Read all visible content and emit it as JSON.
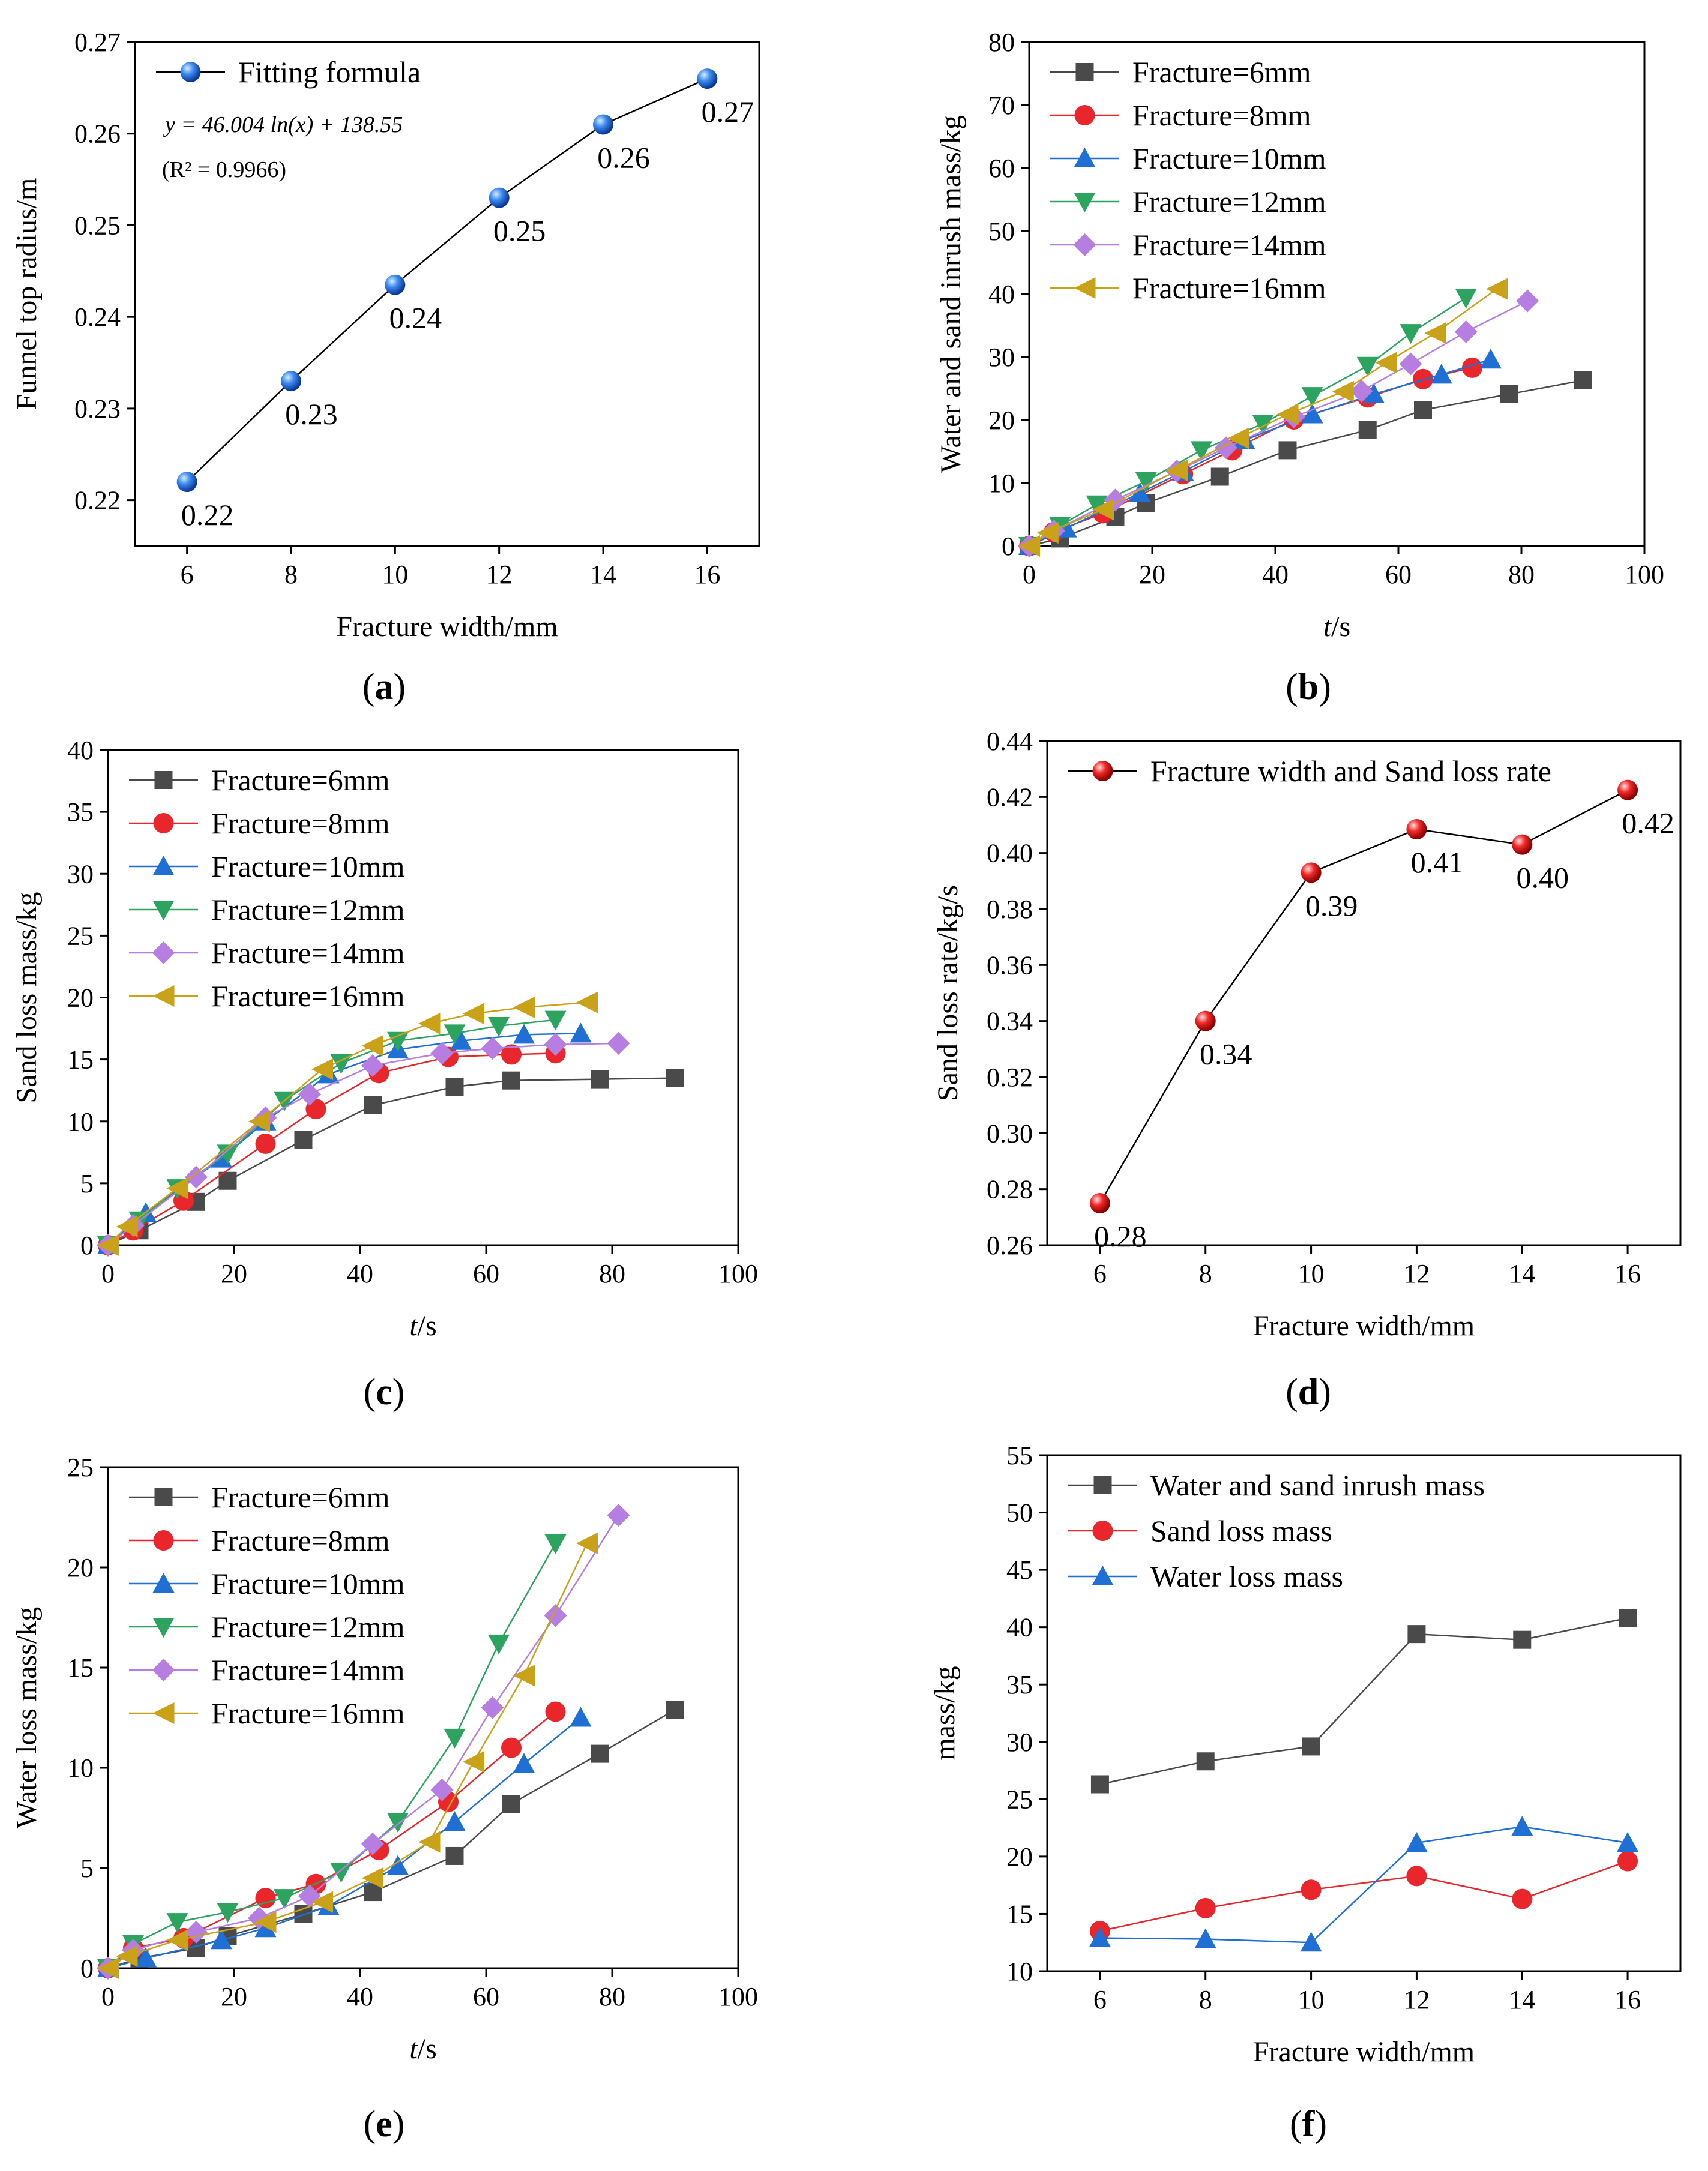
{
  "panel_labels": [
    "a",
    "b",
    "c",
    "d",
    "e",
    "f"
  ],
  "chart_data": [
    {
      "id": "a",
      "type": "line",
      "xlabel": "Fracture width/mm",
      "ylabel": "Funnel top radius/m",
      "xlim": [
        5,
        17
      ],
      "ylim": [
        0.215,
        0.27
      ],
      "xticks": [
        6,
        8,
        10,
        12,
        14,
        16
      ],
      "yticks": [
        0.22,
        0.23,
        0.24,
        0.25,
        0.26,
        0.27
      ],
      "ytick_decimals": 2,
      "legend": "top-left",
      "formula": "y = 46.004 ln(x) + 138.55",
      "r2": "(R² = 0.9966)",
      "series": [
        {
          "name": "Fitting formula",
          "color": "#2a6fd6",
          "marker": "ball",
          "x": [
            6,
            8,
            10,
            12,
            14,
            16
          ],
          "values": [
            0.222,
            0.233,
            0.2435,
            0.253,
            0.261,
            0.266
          ],
          "labels": [
            "0.22",
            "0.23",
            "0.24",
            "0.25",
            "0.26",
            "0.27"
          ]
        }
      ]
    },
    {
      "id": "b",
      "type": "line",
      "xlabel_italic": "t",
      "xlabel_rest": "/s",
      "ylabel": "Water and sand inrush mass/kg",
      "xlim": [
        0,
        100
      ],
      "ylim": [
        0,
        80
      ],
      "xticks": [
        0,
        20,
        40,
        60,
        80,
        100
      ],
      "yticks": [
        0,
        10,
        20,
        30,
        40,
        50,
        60,
        70,
        80
      ],
      "ytick_decimals": 0,
      "legend": "top-left",
      "series": [
        {
          "name": "Fracture=6mm",
          "color": "#4a4a4a",
          "marker": "square",
          "x": [
            0,
            5,
            14,
            19,
            31,
            42,
            55,
            64,
            78,
            90
          ],
          "values": [
            0,
            1.2,
            4.6,
            6.8,
            11,
            15.2,
            18.4,
            21.6,
            24.1,
            26.3
          ]
        },
        {
          "name": "Fracture=8mm",
          "color": "#e8262b",
          "marker": "circle",
          "x": [
            0,
            4,
            12,
            25,
            33,
            43,
            55,
            64,
            72
          ],
          "values": [
            0,
            2.2,
            5.2,
            11.4,
            15.2,
            20.1,
            23.6,
            26.5,
            28.3
          ]
        },
        {
          "name": "Fracture=10mm",
          "color": "#1f6fd4",
          "marker": "triangle",
          "x": [
            0,
            6,
            18,
            25,
            35,
            46,
            56,
            67,
            75
          ],
          "values": [
            0,
            2.8,
            8.4,
            11.8,
            16.8,
            20.9,
            24.1,
            27.2,
            29.6
          ]
        },
        {
          "name": "Fracture=12mm",
          "color": "#2ca35f",
          "marker": "tridown",
          "x": [
            0,
            5,
            11,
            19,
            28,
            38,
            46,
            55,
            62,
            71
          ],
          "values": [
            0,
            3.2,
            6.6,
            10.3,
            15.2,
            19.4,
            23.8,
            28.6,
            33.8,
            39.4
          ]
        },
        {
          "name": "Fracture=14mm",
          "color": "#b57ee0",
          "marker": "diamond",
          "x": [
            0,
            4,
            14,
            24,
            32,
            43,
            54,
            62,
            71,
            81
          ],
          "values": [
            0,
            2.4,
            7.3,
            11.9,
            15.6,
            20.5,
            24.6,
            28.9,
            34,
            38.9
          ]
        },
        {
          "name": "Fracture=16mm",
          "color": "#c9a21a",
          "marker": "triangleleft",
          "x": [
            0,
            3,
            12,
            24,
            34,
            42,
            51,
            58,
            66,
            76
          ],
          "values": [
            0,
            2.1,
            5.8,
            12,
            17.1,
            20.9,
            24.5,
            29.1,
            33.8,
            40.8
          ]
        }
      ]
    },
    {
      "id": "c",
      "type": "line",
      "xlabel_italic": "t",
      "xlabel_rest": "/s",
      "ylabel": "Sand loss mass/kg",
      "xlim": [
        0,
        100
      ],
      "ylim": [
        0,
        40
      ],
      "xticks": [
        0,
        20,
        40,
        60,
        80,
        100
      ],
      "yticks": [
        0,
        5,
        10,
        15,
        20,
        25,
        30,
        35,
        40
      ],
      "ytick_decimals": 0,
      "legend": "top-left",
      "series": [
        {
          "name": "Fracture=6mm",
          "color": "#4a4a4a",
          "marker": "square",
          "x": [
            0,
            5,
            14,
            19,
            31,
            42,
            55,
            64,
            78,
            90
          ],
          "values": [
            0,
            1.2,
            3.5,
            5.2,
            8.5,
            11.3,
            12.8,
            13.3,
            13.4,
            13.5
          ]
        },
        {
          "name": "Fracture=8mm",
          "color": "#e8262b",
          "marker": "circle",
          "x": [
            0,
            4,
            12,
            25,
            33,
            43,
            54,
            64,
            71
          ],
          "values": [
            0,
            1.2,
            3.6,
            8.2,
            11,
            13.9,
            15.2,
            15.4,
            15.5
          ]
        },
        {
          "name": "Fracture=10mm",
          "color": "#1f6fd4",
          "marker": "triangle",
          "x": [
            0,
            6,
            18,
            25,
            35,
            46,
            56,
            66,
            75
          ],
          "values": [
            0,
            2.6,
            7,
            10,
            13.8,
            15.8,
            16.5,
            17,
            17.1
          ]
        },
        {
          "name": "Fracture=12mm",
          "color": "#2ca35f",
          "marker": "tridown",
          "x": [
            0,
            5,
            11,
            19,
            28,
            37,
            46,
            55,
            62,
            71
          ],
          "values": [
            0,
            2,
            4.6,
            7.4,
            11.7,
            14.7,
            16.5,
            17.1,
            17.7,
            18.2
          ]
        },
        {
          "name": "Fracture=14mm",
          "color": "#b57ee0",
          "marker": "diamond",
          "x": [
            0,
            4,
            14,
            25,
            32,
            42,
            53,
            61,
            71,
            81
          ],
          "values": [
            0,
            1.6,
            5.5,
            10.3,
            12.2,
            14.5,
            15.5,
            15.9,
            16.2,
            16.3
          ]
        },
        {
          "name": "Fracture=16mm",
          "color": "#c9a21a",
          "marker": "triangleleft",
          "x": [
            0,
            3,
            11,
            24,
            34,
            42,
            51,
            58,
            66,
            76
          ],
          "values": [
            0,
            1.5,
            4.6,
            10,
            14.2,
            16.1,
            17.9,
            18.7,
            19.2,
            19.6
          ]
        }
      ]
    },
    {
      "id": "d",
      "type": "line",
      "xlabel": "Fracture width/mm",
      "ylabel": "Sand loss rate/kg/s",
      "xlim": [
        5,
        17
      ],
      "ylim": [
        0.26,
        0.44
      ],
      "xticks": [
        6,
        8,
        10,
        12,
        14,
        16
      ],
      "yticks": [
        0.26,
        0.28,
        0.3,
        0.32,
        0.34,
        0.36,
        0.38,
        0.4,
        0.42,
        0.44
      ],
      "ytick_decimals": 2,
      "legend": "top-left",
      "series": [
        {
          "name": "Fracture width and Sand loss rate",
          "color": "#e8262b",
          "marker": "ball",
          "x": [
            6,
            8,
            10,
            12,
            14,
            16
          ],
          "values": [
            0.275,
            0.34,
            0.393,
            0.4085,
            0.403,
            0.4225
          ],
          "labels": [
            "0.28",
            "0.34",
            "0.39",
            "0.41",
            "0.40",
            "0.42"
          ]
        }
      ]
    },
    {
      "id": "e",
      "type": "line",
      "xlabel_italic": "t",
      "xlabel_rest": "/s",
      "ylabel": "Water loss mass/kg",
      "xlim": [
        0,
        100
      ],
      "ylim": [
        0,
        25
      ],
      "xticks": [
        0,
        20,
        40,
        60,
        80,
        100
      ],
      "yticks": [
        0,
        5,
        10,
        15,
        20,
        25
      ],
      "ytick_decimals": 0,
      "legend": "top-left",
      "series": [
        {
          "name": "Fracture=6mm",
          "color": "#4a4a4a",
          "marker": "square",
          "x": [
            0,
            5,
            14,
            19,
            31,
            42,
            55,
            64,
            78,
            90
          ],
          "values": [
            0,
            0.5,
            1,
            1.6,
            2.7,
            3.8,
            5.6,
            8.2,
            10.7,
            12.9
          ]
        },
        {
          "name": "Fracture=8mm",
          "color": "#e8262b",
          "marker": "circle",
          "x": [
            0,
            4,
            12,
            25,
            33,
            43,
            54,
            64,
            71
          ],
          "values": [
            0,
            1,
            1.5,
            3.5,
            4.2,
            5.9,
            8.3,
            11,
            12.8
          ]
        },
        {
          "name": "Fracture=10mm",
          "color": "#1f6fd4",
          "marker": "triangle",
          "x": [
            0,
            6,
            18,
            25,
            35,
            46,
            55,
            66,
            75
          ],
          "values": [
            0,
            0.5,
            1.4,
            2,
            3.1,
            5.1,
            7.3,
            10.2,
            12.5
          ]
        },
        {
          "name": "Fracture=12mm",
          "color": "#2ca35f",
          "marker": "tridown",
          "x": [
            0,
            4,
            11,
            19,
            28,
            37,
            46,
            55,
            62,
            71
          ],
          "values": [
            0,
            1.2,
            2.3,
            2.8,
            3.5,
            4.8,
            7.3,
            11.5,
            16.2,
            21.2
          ]
        },
        {
          "name": "Fracture=14mm",
          "color": "#b57ee0",
          "marker": "diamond",
          "x": [
            0,
            4,
            14,
            24,
            32,
            42,
            53,
            61,
            71,
            81
          ],
          "values": [
            0,
            0.9,
            1.8,
            2.5,
            3.6,
            6.2,
            8.9,
            13,
            17.6,
            22.6
          ]
        },
        {
          "name": "Fracture=16mm",
          "color": "#c9a21a",
          "marker": "triangleleft",
          "x": [
            0,
            3,
            11,
            25,
            34,
            42,
            51,
            58,
            66,
            76
          ],
          "values": [
            0,
            0.6,
            1.4,
            2.3,
            3.3,
            4.5,
            6.3,
            10.3,
            14.6,
            21.2
          ]
        }
      ]
    },
    {
      "id": "f",
      "type": "line",
      "xlabel": "Fracture width/mm",
      "ylabel": "mass/kg",
      "xlim": [
        5,
        17
      ],
      "ylim": [
        10,
        55
      ],
      "xticks": [
        6,
        8,
        10,
        12,
        14,
        16
      ],
      "yticks": [
        10,
        15,
        20,
        25,
        30,
        35,
        40,
        45,
        50,
        55
      ],
      "ytick_decimals": 0,
      "legend": "top-left",
      "series": [
        {
          "name": "Water and sand inrush mass",
          "color": "#4a4a4a",
          "marker": "square",
          "x": [
            6,
            8,
            10,
            12,
            14,
            16
          ],
          "values": [
            26.3,
            28.3,
            29.6,
            39.4,
            38.9,
            40.8
          ]
        },
        {
          "name": "Sand loss mass",
          "color": "#e8262b",
          "marker": "circle",
          "x": [
            6,
            8,
            10,
            12,
            14,
            16
          ],
          "values": [
            13.5,
            15.5,
            17.1,
            18.3,
            16.3,
            19.6
          ]
        },
        {
          "name": "Water loss mass",
          "color": "#1f6fd4",
          "marker": "triangle",
          "x": [
            6,
            8,
            10,
            12,
            14,
            16
          ],
          "values": [
            12.9,
            12.8,
            12.5,
            21.2,
            22.6,
            21.2
          ]
        }
      ]
    }
  ]
}
